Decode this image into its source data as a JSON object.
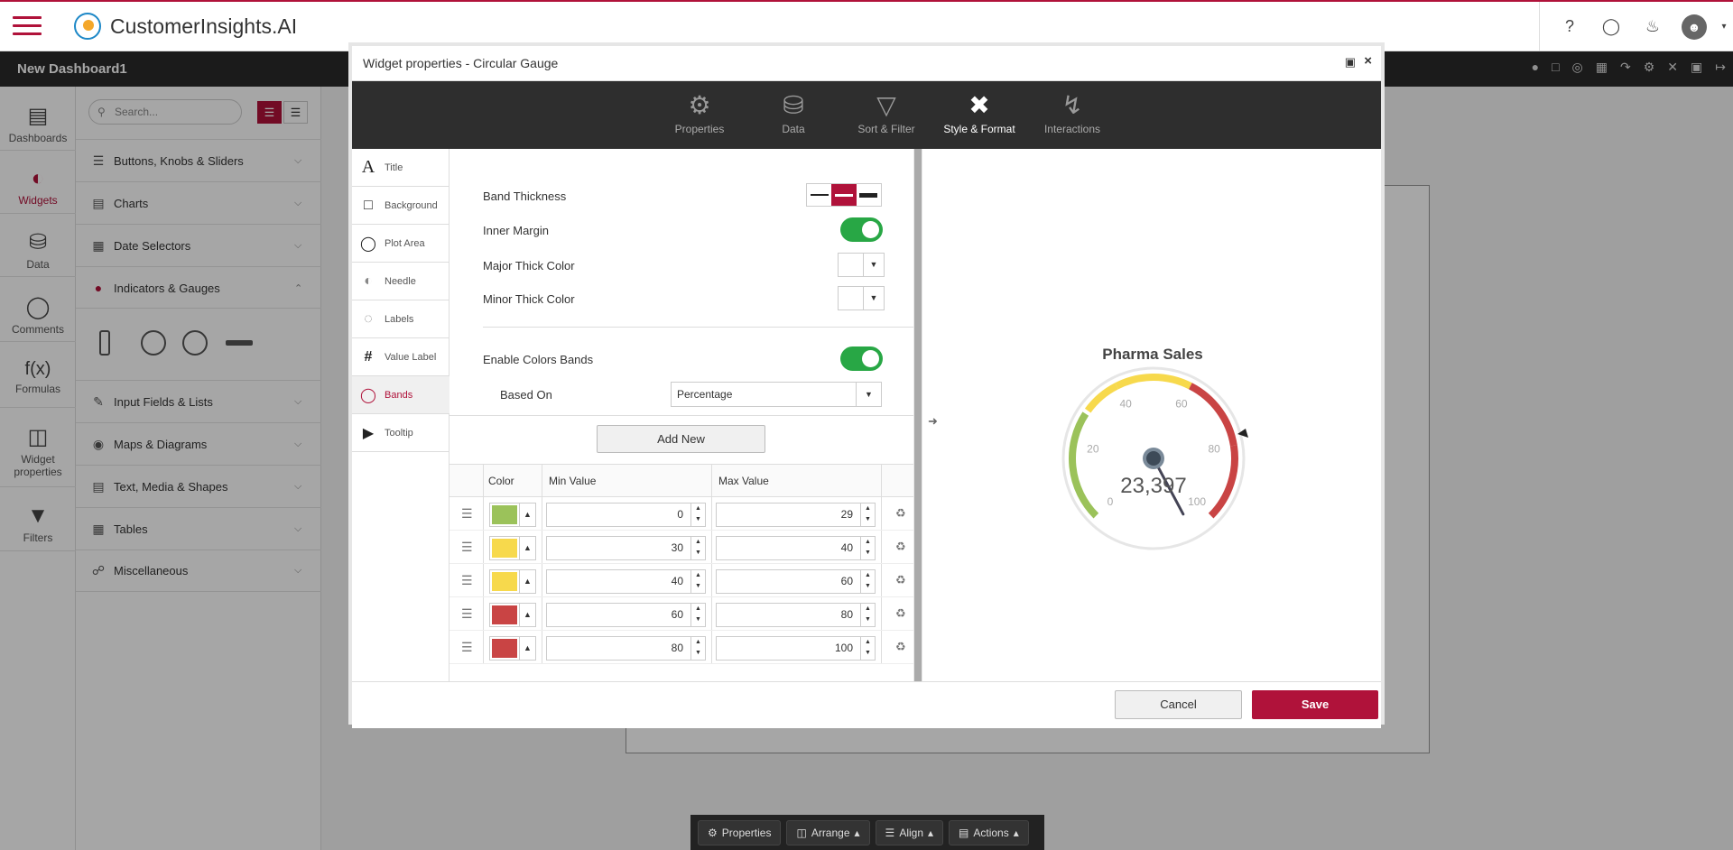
{
  "app": {
    "title": "CustomerInsights.AI"
  },
  "dashboard": {
    "title": "New Dashboard1"
  },
  "nav": [
    {
      "label": "Dashboards",
      "icon": "bar-chart-icon"
    },
    {
      "label": "Widgets",
      "icon": "speedometer-icon"
    },
    {
      "label": "Data",
      "icon": "database-icon"
    },
    {
      "label": "Comments",
      "icon": "comments-icon"
    },
    {
      "label": "Formulas",
      "icon": "function-icon",
      "glyph": "f(x)"
    },
    {
      "label1": "Widget",
      "label2": "properties",
      "icon": "layout-icon"
    },
    {
      "label": "Filters",
      "icon": "filter-icon"
    }
  ],
  "widget_panel": {
    "search_placeholder": "Search...",
    "categories": [
      "Buttons, Knobs & Sliders",
      "Charts",
      "Date Selectors",
      "Indicators & Gauges",
      "Input Fields & Lists",
      "Maps & Diagrams",
      "Text, Media & Shapes",
      "Tables",
      "Miscellaneous"
    ]
  },
  "modal": {
    "title": "Widget properties - Circular Gauge",
    "tabs": [
      "Properties",
      "Data",
      "Sort & Filter",
      "Style & Format",
      "Interactions"
    ],
    "active_tab": "Style & Format",
    "side_tabs": [
      "Title",
      "Background",
      "Plot Area",
      "Needle",
      "Labels",
      "Value Label",
      "Bands",
      "Tooltip"
    ],
    "active_side_tab": "Bands",
    "form": {
      "band_thickness_label": "Band Thickness",
      "inner_margin_label": "Inner Margin",
      "inner_margin_on": true,
      "major_thick_color_label": "Major Thick Color",
      "minor_thick_color_label": "Minor Thick Color",
      "enable_color_bands_label": "Enable Colors Bands",
      "enable_color_bands_on": true,
      "based_on_label": "Based On",
      "based_on_value": "Percentage",
      "add_new_label": "Add New"
    },
    "bands_table": {
      "headers": [
        "Color",
        "Min Value",
        "Max Value"
      ],
      "rows": [
        {
          "color": "#9bc25a",
          "min": "0",
          "max": "29"
        },
        {
          "color": "#f7d94c",
          "min": "30",
          "max": "40"
        },
        {
          "color": "#f7d94c",
          "min": "40",
          "max": "60"
        },
        {
          "color": "#c94444",
          "min": "60",
          "max": "80"
        },
        {
          "color": "#c94444",
          "min": "80",
          "max": "100"
        }
      ]
    },
    "preview": {
      "title": "Pharma Sales",
      "value": "23,397",
      "ticks": [
        "0",
        "20",
        "40",
        "60",
        "80",
        "100"
      ]
    },
    "cancel_label": "Cancel",
    "save_label": "Save"
  },
  "bottom_bar": [
    "Properties",
    "Arrange",
    "Align",
    "Actions"
  ],
  "colors": {
    "accent": "#b0123a",
    "toggle_on": "#28a745"
  }
}
